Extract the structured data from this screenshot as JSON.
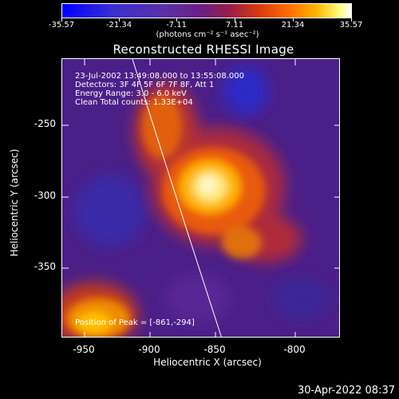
{
  "colorbar": {
    "tick_labels": [
      "-35.57",
      "-21.34",
      "-7.11",
      "7.11",
      "21.34",
      "35.57"
    ],
    "units": "(photons cm⁻² s⁻¹ asec⁻²)"
  },
  "plot": {
    "title": "Reconstructed RHESSI Image",
    "annotations": [
      "23-Jul-2002 13:49:08.000 to 13:55:08.000",
      "Detectors: 3F 4F 5F 6F 7F 8F, Att 1",
      "Energy Range: 3.0 - 6.0 keV",
      "Clean     Total counts: 1.33E+04"
    ],
    "peak_label": "Position of Peak = [-861,-294]",
    "x_axis": {
      "title": "Heliocentric X (arcsec)",
      "tick_labels": [
        "-950",
        "-900",
        "-850",
        "-800"
      ]
    },
    "y_axis": {
      "title": "Heliocentric Y (arcsec)",
      "tick_labels": [
        "-250",
        "-300",
        "-350"
      ]
    }
  },
  "timestamp": "30-Apr-2022 08:37",
  "colors": {
    "background": "#000000",
    "foreground": "#ffffff",
    "image_base": "#4a1e86",
    "peak": "#fff7b0"
  }
}
